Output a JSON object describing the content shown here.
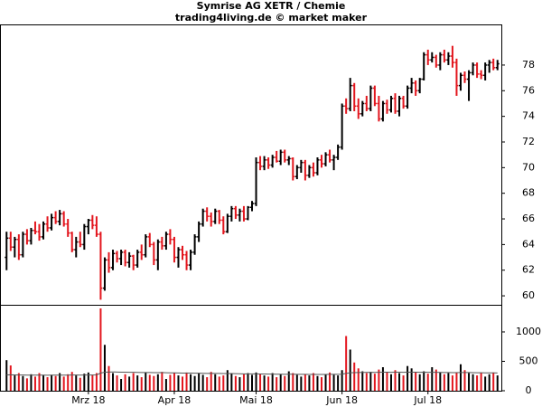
{
  "chart_data": {
    "type": "ohlc",
    "title": "Symrise AG XETR / Chemie",
    "subtitle": "trading4living.de © market maker",
    "categories": [
      null,
      null,
      null,
      null,
      null,
      null,
      null,
      null,
      null,
      null,
      null,
      null,
      null,
      null,
      null,
      null,
      null,
      null,
      null,
      null,
      "Mrz 18",
      null,
      null,
      null,
      null,
      null,
      null,
      null,
      null,
      null,
      null,
      null,
      null,
      null,
      null,
      null,
      null,
      null,
      null,
      null,
      null,
      "Apr 18",
      null,
      null,
      null,
      null,
      null,
      null,
      null,
      null,
      null,
      null,
      null,
      null,
      null,
      null,
      null,
      null,
      null,
      null,
      null,
      "Mai 18",
      null,
      null,
      null,
      null,
      null,
      null,
      null,
      null,
      null,
      null,
      null,
      null,
      null,
      null,
      null,
      null,
      null,
      null,
      null,
      null,
      "Jun 18",
      null,
      null,
      null,
      null,
      null,
      null,
      null,
      null,
      null,
      null,
      null,
      null,
      null,
      null,
      null,
      null,
      null,
      null,
      null,
      null,
      "Jul 18",
      null,
      null,
      null,
      null,
      null,
      null,
      null,
      null,
      null,
      null,
      null,
      null,
      null,
      null,
      null,
      null,
      null
    ],
    "open": [
      63.0,
      64.5,
      63.8,
      64.4,
      63.2,
      64.8,
      64.3,
      65.1,
      65.0,
      64.6,
      65.6,
      65.3,
      66.1,
      65.8,
      66.4,
      65.6,
      64.9,
      63.6,
      64.2,
      64.0,
      65.4,
      65.9,
      65.5,
      64.8,
      60.6,
      62.8,
      62.2,
      63.3,
      62.9,
      63.4,
      62.6,
      63.1,
      62.4,
      63.4,
      63.2,
      64.6,
      64.0,
      62.8,
      64.2,
      63.9,
      64.8,
      64.4,
      63.0,
      63.6,
      63.2,
      62.4,
      63.4,
      64.6,
      65.6,
      66.6,
      66.2,
      65.8,
      66.6,
      65.9,
      65.0,
      66.2,
      66.8,
      66.3,
      66.6,
      66.0,
      66.9,
      67.2,
      70.4,
      70.1,
      70.6,
      70.2,
      70.8,
      70.5,
      71.2,
      70.6,
      70.7,
      69.3,
      70.0,
      70.4,
      69.4,
      70.0,
      69.6,
      70.6,
      70.3,
      71.0,
      70.6,
      70.8,
      71.6,
      74.8,
      74.6,
      76.4,
      74.8,
      74.2,
      75.0,
      74.6,
      76.2,
      75.0,
      73.8,
      75.0,
      74.5,
      75.4,
      74.4,
      75.4,
      74.8,
      76.2,
      76.6,
      76.0,
      76.9,
      78.8,
      78.4,
      78.6,
      78.0,
      78.8,
      78.4,
      78.7,
      78.2,
      76.4,
      77.2,
      76.9,
      77.4,
      78.0,
      77.3,
      77.2,
      78.0,
      78.2,
      77.8
    ],
    "high": [
      65.0,
      65.0,
      64.6,
      64.8,
      65.0,
      65.2,
      65.3,
      65.8,
      65.6,
      65.8,
      66.2,
      66.4,
      66.6,
      66.7,
      66.6,
      66.0,
      65.0,
      64.6,
      65.0,
      65.6,
      66.0,
      66.3,
      66.2,
      65.0,
      63.0,
      63.4,
      63.6,
      63.5,
      63.6,
      63.6,
      63.4,
      63.2,
      63.6,
      64.0,
      64.8,
      64.9,
      64.2,
      64.4,
      64.6,
      65.0,
      65.2,
      64.6,
      63.8,
      63.9,
      63.5,
      63.6,
      64.8,
      65.8,
      66.8,
      66.9,
      66.5,
      66.8,
      66.7,
      66.2,
      66.4,
      67.0,
      67.0,
      66.8,
      67.0,
      67.0,
      67.4,
      70.8,
      70.9,
      70.9,
      70.8,
      71.0,
      71.3,
      71.4,
      71.4,
      70.9,
      70.8,
      70.2,
      70.6,
      70.6,
      70.2,
      70.4,
      70.8,
      71.0,
      71.2,
      71.4,
      71.0,
      71.8,
      75.0,
      75.4,
      77.0,
      76.6,
      75.4,
      75.2,
      75.6,
      76.4,
      76.4,
      75.6,
      75.2,
      75.3,
      75.6,
      75.8,
      75.6,
      75.6,
      76.4,
      77.0,
      76.8,
      77.0,
      79.0,
      79.2,
      79.0,
      78.8,
      79.0,
      79.2,
      79.0,
      79.5,
      78.5,
      77.4,
      77.5,
      77.6,
      78.2,
      78.2,
      77.6,
      78.2,
      78.4,
      78.5,
      78.4
    ],
    "low": [
      62.0,
      63.5,
      63.0,
      62.8,
      63.0,
      64.0,
      64.0,
      64.8,
      64.3,
      64.4,
      65.0,
      65.1,
      65.6,
      65.5,
      65.4,
      64.6,
      63.4,
      63.0,
      63.8,
      63.6,
      64.8,
      65.2,
      64.6,
      59.7,
      60.4,
      61.8,
      62.0,
      62.6,
      62.4,
      62.3,
      62.2,
      62.0,
      62.2,
      62.8,
      63.0,
      63.8,
      62.4,
      62.0,
      63.6,
      63.6,
      64.0,
      62.6,
      62.2,
      62.8,
      62.0,
      62.0,
      63.2,
      64.2,
      65.4,
      65.8,
      65.4,
      65.6,
      65.6,
      64.8,
      64.9,
      65.8,
      66.0,
      65.8,
      65.8,
      65.9,
      66.6,
      67.0,
      69.8,
      69.8,
      69.9,
      70.0,
      70.4,
      70.2,
      70.4,
      70.2,
      69.0,
      69.1,
      69.6,
      69.0,
      69.2,
      69.3,
      69.4,
      70.0,
      70.1,
      70.4,
      69.8,
      70.6,
      71.4,
      74.2,
      74.4,
      74.4,
      73.8,
      74.0,
      74.4,
      74.4,
      74.8,
      73.6,
      73.6,
      74.2,
      74.3,
      74.2,
      74.0,
      74.6,
      74.6,
      75.8,
      75.6,
      75.8,
      76.8,
      78.0,
      78.2,
      77.8,
      77.6,
      78.2,
      78.0,
      77.8,
      75.6,
      76.0,
      76.6,
      75.2,
      77.2,
      77.0,
      76.9,
      76.8,
      77.4,
      77.6,
      77.6
    ],
    "close": [
      64.5,
      63.8,
      64.4,
      63.2,
      64.8,
      64.3,
      65.1,
      65.0,
      64.6,
      65.6,
      65.3,
      66.1,
      65.8,
      66.4,
      65.6,
      64.9,
      63.6,
      64.2,
      64.0,
      65.4,
      65.9,
      65.5,
      64.8,
      60.6,
      62.8,
      62.2,
      63.3,
      62.9,
      63.4,
      62.6,
      63.1,
      62.4,
      63.4,
      63.2,
      64.6,
      64.0,
      62.8,
      64.2,
      63.9,
      64.8,
      64.4,
      63.0,
      63.6,
      63.2,
      62.4,
      63.4,
      64.6,
      65.6,
      66.6,
      66.2,
      65.8,
      66.6,
      65.9,
      65.0,
      66.2,
      66.8,
      66.3,
      66.6,
      66.0,
      66.9,
      67.2,
      70.4,
      70.1,
      70.6,
      70.2,
      70.8,
      70.5,
      71.2,
      70.6,
      70.7,
      69.3,
      70.0,
      70.4,
      69.4,
      70.0,
      69.6,
      70.6,
      70.3,
      71.0,
      70.6,
      70.8,
      71.6,
      74.8,
      74.6,
      76.4,
      74.8,
      74.2,
      75.0,
      74.6,
      76.2,
      75.0,
      73.8,
      75.0,
      74.5,
      75.4,
      74.4,
      75.4,
      74.8,
      76.2,
      76.6,
      76.0,
      76.9,
      78.8,
      78.4,
      78.6,
      78.0,
      78.8,
      78.4,
      78.7,
      78.2,
      76.4,
      77.2,
      76.9,
      77.4,
      78.0,
      77.3,
      77.2,
      78.0,
      78.2,
      77.8,
      78.1
    ],
    "volume": [
      520,
      430,
      260,
      300,
      250,
      210,
      280,
      240,
      300,
      260,
      230,
      270,
      250,
      300,
      240,
      280,
      320,
      260,
      220,
      290,
      310,
      270,
      300,
      1400,
      780,
      420,
      300,
      260,
      200,
      280,
      240,
      300,
      260,
      230,
      310,
      270,
      250,
      280,
      320,
      200,
      270,
      300,
      260,
      240,
      310,
      280,
      250,
      300,
      270,
      230,
      320,
      280,
      240,
      260,
      350,
      290,
      250,
      230,
      280,
      300,
      270,
      310,
      280,
      260,
      240,
      300,
      230,
      280,
      250,
      330,
      300,
      270,
      240,
      280,
      260,
      300,
      250,
      230,
      280,
      310,
      270,
      260,
      350,
      930,
      700,
      480,
      380,
      330,
      300,
      320,
      290,
      360,
      400,
      320,
      280,
      350,
      300,
      260,
      420,
      380,
      310,
      280,
      330,
      290,
      400,
      360,
      310,
      280,
      300,
      260,
      300,
      450,
      350,
      300,
      280,
      260,
      300,
      240,
      280,
      310,
      260
    ],
    "volume_average": [
      270,
      272,
      270,
      268,
      268,
      266,
      266,
      265,
      266,
      265,
      264,
      265,
      265,
      266,
      265,
      266,
      268,
      267,
      266,
      267,
      268,
      268,
      269,
      300,
      315,
      318,
      320,
      318,
      316,
      315,
      314,
      313,
      312,
      310,
      310,
      309,
      308,
      308,
      309,
      306,
      304,
      304,
      302,
      300,
      300,
      299,
      298,
      298,
      297,
      295,
      296,
      295,
      294,
      292,
      293,
      292,
      290,
      288,
      287,
      287,
      286,
      286,
      285,
      284,
      283,
      282,
      280,
      280,
      279,
      280,
      280,
      279,
      278,
      278,
      277,
      278,
      277,
      276,
      277,
      278,
      278,
      278,
      280,
      295,
      305,
      308,
      310,
      312,
      312,
      313,
      312,
      314,
      315,
      315,
      314,
      315,
      315,
      314,
      316,
      316,
      315,
      314,
      315,
      313,
      314,
      314,
      312,
      310,
      309,
      308,
      307,
      310,
      310,
      309,
      308,
      306,
      306,
      304,
      304,
      303,
      302
    ],
    "up_color": "#000000",
    "down_color": "#e3161e",
    "volume_average_color": "#555555",
    "ylim": [
      59.3,
      81.1
    ],
    "yticks": [
      60,
      62,
      64,
      66,
      68,
      70,
      72,
      74,
      76,
      78
    ],
    "y2lim": [
      0,
      1415
    ],
    "y2ticks": [
      0,
      500,
      1000
    ]
  }
}
